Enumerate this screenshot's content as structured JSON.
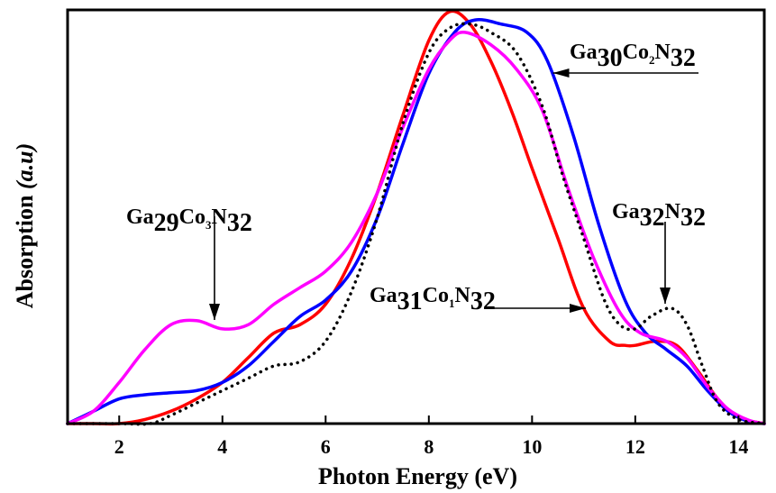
{
  "chart_data": {
    "type": "line",
    "title": "",
    "xlabel": "Photon Energy (eV)",
    "ylabel_main": "Absorption ",
    "ylabel_unit": "(a.u)",
    "xlim": [
      1,
      14.5
    ],
    "ylim": [
      0,
      1.0
    ],
    "xticks": [
      2,
      4,
      6,
      8,
      10,
      12,
      14
    ],
    "xtick_labels": [
      "2",
      "4",
      "6",
      "8",
      "10",
      "12",
      "14"
    ],
    "yticks": [],
    "grid": false,
    "legend": "none (inline annotations)",
    "series": [
      {
        "name": "Ga31Co1N32",
        "color": "#ff0000",
        "style": "solid",
        "x": [
          1.0,
          1.5,
          2.0,
          2.5,
          3.0,
          3.5,
          4.0,
          4.5,
          5.0,
          5.5,
          6.0,
          6.5,
          7.0,
          7.5,
          8.0,
          8.4,
          8.8,
          9.2,
          9.6,
          10.0,
          10.5,
          11.0,
          11.5,
          11.8,
          12.0,
          12.4,
          12.8,
          13.2,
          13.6,
          14.0,
          14.5
        ],
        "y": [
          0.0,
          0.0,
          0.0,
          0.01,
          0.03,
          0.06,
          0.1,
          0.16,
          0.22,
          0.24,
          0.29,
          0.4,
          0.56,
          0.75,
          0.93,
          1.0,
          0.97,
          0.88,
          0.76,
          0.62,
          0.45,
          0.28,
          0.2,
          0.19,
          0.19,
          0.2,
          0.19,
          0.13,
          0.06,
          0.015,
          0.0
        ]
      },
      {
        "name": "Ga30Co2N32",
        "color": "#0000ff",
        "style": "solid",
        "x": [
          1.0,
          1.5,
          2.0,
          2.5,
          3.0,
          3.5,
          4.0,
          4.5,
          5.0,
          5.5,
          6.0,
          6.5,
          7.0,
          7.5,
          8.0,
          8.5,
          8.9,
          9.4,
          9.9,
          10.3,
          10.8,
          11.3,
          11.8,
          12.2,
          12.6,
          13.0,
          13.4,
          13.8,
          14.2,
          14.5
        ],
        "y": [
          0.0,
          0.03,
          0.06,
          0.07,
          0.075,
          0.08,
          0.1,
          0.14,
          0.2,
          0.26,
          0.3,
          0.37,
          0.5,
          0.68,
          0.85,
          0.95,
          0.98,
          0.97,
          0.95,
          0.88,
          0.7,
          0.48,
          0.3,
          0.22,
          0.18,
          0.14,
          0.08,
          0.03,
          0.005,
          0.0
        ]
      },
      {
        "name": "Ga29Co3N32",
        "color": "#ff00ff",
        "style": "solid",
        "x": [
          1.0,
          1.5,
          2.0,
          2.5,
          3.0,
          3.5,
          4.0,
          4.5,
          5.0,
          5.5,
          6.0,
          6.5,
          7.0,
          7.5,
          8.0,
          8.4,
          8.7,
          9.2,
          9.7,
          10.2,
          10.7,
          11.2,
          11.7,
          12.1,
          12.6,
          13.0,
          13.4,
          13.8,
          14.2,
          14.5
        ],
        "y": [
          0.0,
          0.03,
          0.1,
          0.18,
          0.24,
          0.25,
          0.23,
          0.24,
          0.29,
          0.33,
          0.37,
          0.44,
          0.56,
          0.72,
          0.86,
          0.93,
          0.95,
          0.92,
          0.86,
          0.76,
          0.57,
          0.4,
          0.27,
          0.22,
          0.2,
          0.16,
          0.09,
          0.035,
          0.008,
          0.0
        ]
      },
      {
        "name": "Ga32N32",
        "color": "#000000",
        "style": "dotted",
        "x": [
          1.0,
          2.0,
          2.6,
          3.0,
          3.5,
          4.0,
          4.5,
          5.0,
          5.5,
          6.0,
          6.5,
          7.0,
          7.5,
          8.0,
          8.4,
          8.8,
          9.2,
          9.7,
          10.2,
          10.6,
          11.0,
          11.4,
          11.7,
          12.0,
          12.3,
          12.7,
          13.0,
          13.3,
          13.6,
          14.0,
          14.5
        ],
        "y": [
          0.0,
          0.0,
          0.0,
          0.02,
          0.05,
          0.08,
          0.11,
          0.14,
          0.15,
          0.2,
          0.32,
          0.5,
          0.73,
          0.9,
          0.96,
          0.97,
          0.95,
          0.9,
          0.77,
          0.6,
          0.45,
          0.3,
          0.24,
          0.23,
          0.26,
          0.28,
          0.24,
          0.14,
          0.05,
          0.01,
          0.0
        ]
      }
    ],
    "annotations": [
      {
        "id": "ga30",
        "base": "Ga",
        "n1": "30",
        "mid": "Co",
        "n2": "2",
        "end": "N",
        "n3": "32",
        "series": "Ga30Co2N32",
        "arrow": "left",
        "point_x": 10.3,
        "point_y": 0.85
      },
      {
        "id": "ga29",
        "base": "Ga",
        "n1": "29",
        "mid": "Co",
        "n2": "3",
        "end": "N",
        "n3": "32",
        "series": "Ga29Co3N32",
        "arrow": "down",
        "point_x": 3.9,
        "point_y": 0.25
      },
      {
        "id": "ga31",
        "base": "Ga",
        "n1": "31",
        "mid": "Co",
        "n2": "1",
        "end": "N",
        "n3": "32",
        "series": "Ga31Co1N32",
        "arrow": "right",
        "point_x": 11.0,
        "point_y": 0.28
      },
      {
        "id": "ga32",
        "base": "Ga",
        "n1": "32",
        "mid": "",
        "n2": "",
        "end": "N",
        "n3": "32",
        "series": "Ga32N32",
        "arrow": "down",
        "point_x": 12.65,
        "point_y": 0.29
      }
    ]
  }
}
